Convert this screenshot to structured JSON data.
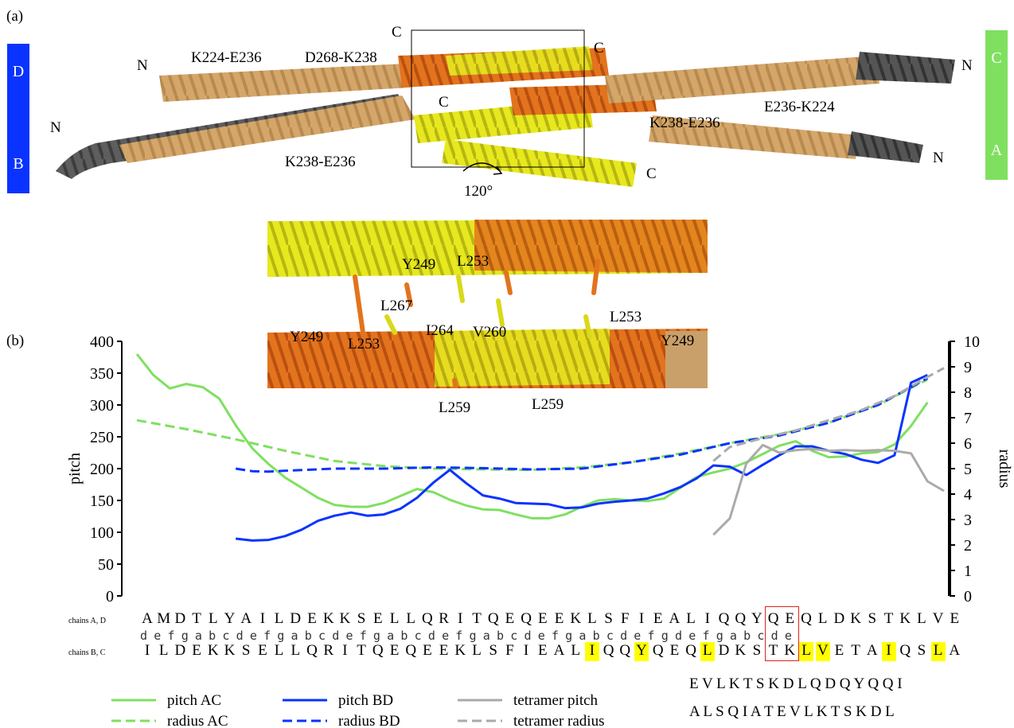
{
  "panel_a": {
    "label": "(a)",
    "chain_left": {
      "top": "D",
      "bottom": "B",
      "color": "#0a33ff"
    },
    "chain_right": {
      "top": "C",
      "bottom": "A",
      "color": "#7fe060"
    },
    "labels": {
      "n1": "N",
      "n2": "N",
      "n3": "N",
      "n4": "N",
      "c1": "C",
      "c2": "C",
      "c3": "C",
      "c4": "C",
      "k224_e236": "K224-E236",
      "d268_k238": "D268-K238",
      "k238_e236_left": "K238-E236",
      "k238_e236_right": "K238-E236",
      "e236_k224": "E236-K224",
      "rotation": "120°"
    },
    "zoom_labels": {
      "y249_top": "Y249",
      "l253_top": "L253",
      "l267": "L267",
      "i264": "I264",
      "v260": "V260",
      "l253_right": "L253",
      "y249_left": "Y249",
      "l253_left": "L253",
      "y249_right": "Y249",
      "l259_a": "L259",
      "l259_b": "L259"
    }
  },
  "panel_b": {
    "label": "(b)",
    "sequence": {
      "row_labels": {
        "ad": "chains A, D",
        "bc": "chains B, C"
      },
      "chains_ad": [
        "A",
        "M",
        "D",
        "T",
        "L",
        "Y",
        "A",
        "I",
        "L",
        "D",
        "E",
        "K",
        "K",
        "S",
        "E",
        "L",
        "L",
        "Q",
        "R",
        "I",
        "T",
        "Q",
        "E",
        "Q",
        "E",
        "E",
        "K",
        "L",
        "S",
        "F",
        "I",
        "E",
        "A",
        "L",
        "I",
        "Q",
        "Q",
        "Y",
        "Q",
        "E",
        "Q",
        "L",
        "D",
        "K",
        "S",
        "T",
        "K",
        "L",
        "V",
        "E"
      ],
      "heptad": "  defgabcdefgabcdefgabcdefgabcdefgabcdefgdefgabcde",
      "chains_bc": [
        "I",
        "L",
        "D",
        "E",
        "K",
        "K",
        "S",
        "E",
        "L",
        "L",
        "Q",
        "R",
        "I",
        "T",
        "Q",
        "E",
        "Q",
        "E",
        "E",
        "K",
        "L",
        "S",
        "F",
        "I",
        "E",
        "A",
        "L",
        "I",
        "Q",
        "Q",
        "Y",
        "Q",
        "E",
        "Q",
        "L",
        "D",
        "K",
        "S",
        "T",
        "K",
        "L",
        "V",
        "E",
        "T",
        "A",
        "I",
        "Q",
        "S",
        "L",
        "A"
      ],
      "extra_row1": "E V L K T S K D L Q D Q Y Q Q I",
      "extra_row2": "A L S Q I A T E V L K T S K D L"
    }
  },
  "chart_data": {
    "type": "line",
    "ylabel": "pitch",
    "y2label": "radius",
    "ylim": [
      0,
      400
    ],
    "y2lim": [
      0,
      10
    ],
    "yticks": [
      0,
      50,
      100,
      150,
      200,
      250,
      300,
      350,
      400
    ],
    "y2ticks": [
      0,
      1,
      2,
      3,
      4,
      5,
      6,
      7,
      8,
      9,
      10
    ],
    "x_range": [
      0,
      49
    ],
    "series": [
      {
        "name": "pitch AC",
        "axis": "left",
        "color": "#7fe060",
        "dash": false,
        "x": [
          0,
          1,
          2,
          3,
          4,
          5,
          6,
          7,
          8,
          9,
          10,
          11,
          12,
          13,
          14,
          15,
          16,
          17,
          18,
          19,
          20,
          21,
          22,
          23,
          24,
          25,
          26,
          27,
          28,
          29,
          30,
          31,
          32,
          33,
          34,
          35,
          36,
          37,
          38,
          39,
          40,
          41,
          42,
          43,
          44,
          45,
          46,
          47,
          48
        ],
        "values": [
          380,
          347,
          326,
          333,
          328,
          310,
          268,
          232,
          207,
          186,
          170,
          154,
          143,
          140,
          140,
          146,
          157,
          168,
          163,
          151,
          142,
          136,
          135,
          128,
          122,
          122,
          128,
          140,
          150,
          152,
          150,
          149,
          153,
          170,
          187,
          194,
          200,
          210,
          223,
          236,
          243,
          228,
          218,
          219,
          224,
          226,
          238,
          267,
          304
        ]
      },
      {
        "name": "radius AC",
        "axis": "right",
        "color": "#7fe060",
        "dash": true,
        "x": [
          0,
          3,
          6,
          9,
          12,
          15,
          18,
          21,
          24,
          27,
          30,
          33,
          36,
          39,
          42,
          45,
          48
        ],
        "values": [
          6.9,
          6.55,
          6.15,
          5.7,
          5.3,
          5.1,
          5.0,
          4.97,
          4.95,
          5.05,
          5.25,
          5.6,
          6.0,
          6.35,
          6.8,
          7.5,
          8.5
        ]
      },
      {
        "name": "pitch BD",
        "axis": "left",
        "color": "#0a33ff",
        "dash": false,
        "x": [
          6,
          7,
          8,
          9,
          10,
          11,
          12,
          13,
          14,
          15,
          16,
          17,
          18,
          19,
          20,
          21,
          22,
          23,
          24,
          25,
          26,
          27,
          28,
          29,
          30,
          31,
          32,
          33,
          34,
          35,
          36,
          37,
          38,
          39,
          40,
          41,
          42,
          43,
          44,
          45,
          46,
          47,
          48
        ],
        "values": [
          90,
          87,
          88,
          94,
          104,
          118,
          126,
          131,
          126,
          128,
          137,
          154,
          178,
          198,
          177,
          158,
          153,
          146,
          145,
          144,
          138,
          139,
          145,
          148,
          150,
          153,
          161,
          171,
          185,
          205,
          203,
          190,
          206,
          221,
          235,
          235,
          228,
          223,
          214,
          209,
          221,
          335,
          347
        ]
      },
      {
        "name": "radius BD",
        "axis": "right",
        "color": "#0a33ff",
        "dash": true,
        "x": [
          6,
          7,
          8,
          9,
          12,
          15,
          18,
          21,
          24,
          27,
          30,
          33,
          36,
          39,
          42,
          45,
          48
        ],
        "values": [
          5.0,
          4.9,
          4.88,
          4.92,
          5.0,
          5.0,
          5.05,
          5.02,
          4.97,
          5.0,
          5.25,
          5.55,
          6.0,
          6.3,
          6.8,
          7.5,
          8.55
        ]
      },
      {
        "name": "tetramer pitch",
        "axis": "left",
        "color": "#aaaaaa",
        "dash": false,
        "x": [
          35,
          36,
          37,
          38,
          39,
          40,
          41,
          42,
          43,
          44,
          45,
          46,
          47,
          48,
          49
        ],
        "values": [
          96,
          122,
          208,
          237,
          225,
          229,
          231,
          228,
          229,
          228,
          229,
          228,
          224,
          180,
          165
        ]
      },
      {
        "name": "tetramer radius",
        "axis": "right",
        "color": "#aaaaaa",
        "dash": true,
        "x": [
          35,
          36,
          38,
          40,
          42,
          44,
          46,
          48,
          49
        ],
        "values": [
          5.3,
          5.85,
          6.2,
          6.5,
          6.9,
          7.3,
          7.85,
          8.6,
          8.95
        ]
      }
    ],
    "legend_placement": "bottom"
  }
}
